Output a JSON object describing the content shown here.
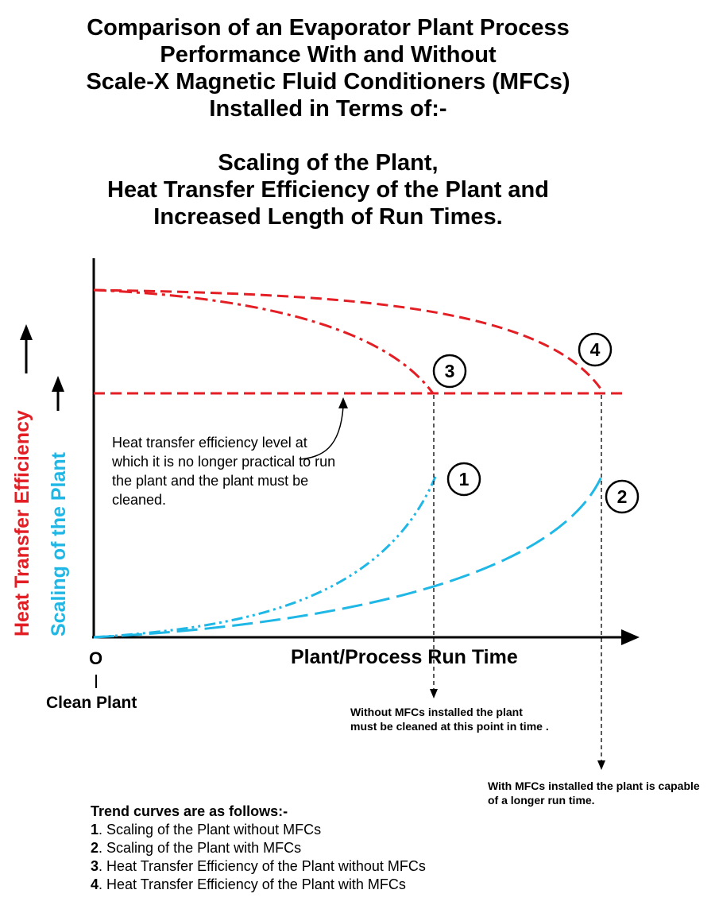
{
  "title_lines": [
    "Comparison of an Evaporator Plant Process",
    "Performance With and Without",
    "Scale-X Magnetic Fluid Conditioners (MFCs)",
    "Installed in Terms of:-"
  ],
  "subtitle_lines": [
    "Scaling of the Plant,",
    "Heat  Transfer Efficiency of the Plant and",
    "Increased Length of Run Times."
  ],
  "colors": {
    "red": "#e31e24",
    "cyan": "#1fb8e6"
  },
  "chart_data": {
    "type": "line",
    "title": "",
    "xlabel": "Plant/Process Run Time",
    "ylabels": [
      "Heat  Transfer Efficiency",
      "Scaling of the Plant"
    ],
    "origin_label": "O",
    "origin_sublabel": "Clean Plant",
    "qualitative": true,
    "grid": false,
    "cleaning_threshold_annotation": "Heat transfer efficiency level at which it is no longer practical to run the plant and the plant must be cleaned.",
    "series": [
      {
        "id": 1,
        "name": "Scaling of the Plant without MFCs",
        "color": "#1fb8e6",
        "dash": "dash-dot-dot"
      },
      {
        "id": 2,
        "name": "Scaling of the Plant with MFCs",
        "color": "#1fb8e6",
        "dash": "long-dash"
      },
      {
        "id": 3,
        "name": "Heat  Transfer Efficiency of the Plant without MFCs",
        "color": "#e31e24",
        "dash": "dash-dot"
      },
      {
        "id": 4,
        "name": "Heat  Transfer Efficiency of the Plant with MFCs",
        "color": "#e31e24",
        "dash": "dash"
      }
    ],
    "markers": [
      "1",
      "2",
      "3",
      "4"
    ]
  },
  "notes": {
    "without": "Without MFCs installed the plant must be cleaned at this point in time .",
    "with": "With MFCs installed the plant is capable of a longer run time."
  },
  "legend": {
    "heading": "Trend curves are as follows:-",
    "items": [
      {
        "num": "1",
        "text": ". Scaling of the Plant without MFCs"
      },
      {
        "num": "2",
        "text": ". Scaling of the Plant with MFCs"
      },
      {
        "num": "3",
        "text": ". Heat  Transfer Efficiency of the Plant without MFCs"
      },
      {
        "num": "4",
        "text": ". Heat  Transfer Efficiency of the Plant with MFCs"
      }
    ]
  }
}
